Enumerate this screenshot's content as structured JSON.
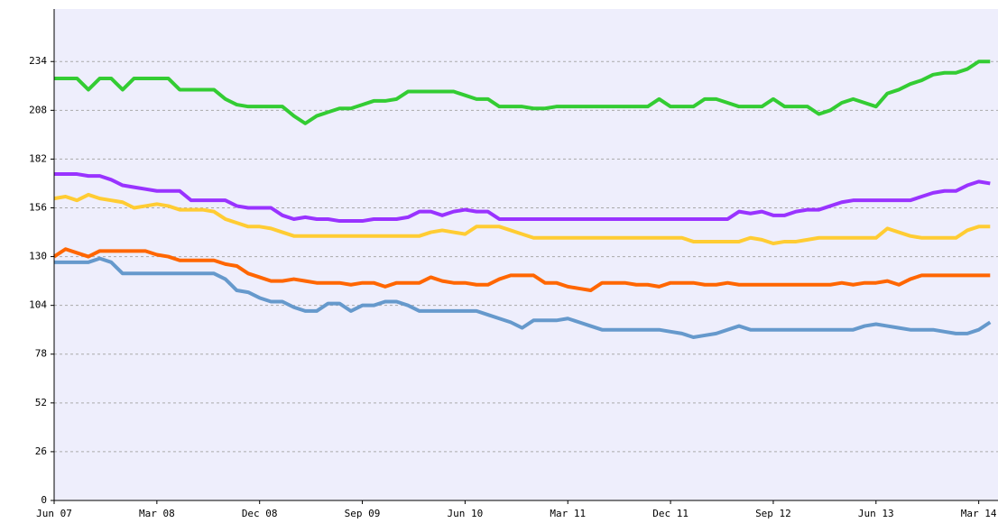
{
  "chart_data": {
    "type": "line",
    "categories": [
      "Jun 07",
      null,
      null,
      null,
      null,
      null,
      null,
      null,
      null,
      "Mar 08",
      null,
      null,
      null,
      null,
      null,
      null,
      null,
      null,
      "Dec 08",
      null,
      null,
      null,
      null,
      null,
      null,
      null,
      null,
      "Sep 09",
      null,
      null,
      null,
      null,
      null,
      null,
      null,
      null,
      "Jun 10",
      null,
      null,
      null,
      null,
      null,
      null,
      null,
      null,
      "Mar 11",
      null,
      null,
      null,
      null,
      null,
      null,
      null,
      null,
      "Dec 11",
      null,
      null,
      null,
      null,
      null,
      null,
      null,
      null,
      "Sep 12",
      null,
      null,
      null,
      null,
      null,
      null,
      null,
      null,
      "Jun 13",
      null,
      null,
      null,
      null,
      null,
      null,
      null,
      null,
      "Mar 14",
      null
    ],
    "series": [
      {
        "color": "#33cc33",
        "values": [
          225,
          225,
          225,
          219,
          225,
          225,
          219,
          225,
          225,
          225,
          225,
          219,
          219,
          219,
          219,
          214,
          211,
          210,
          210,
          210,
          210,
          205,
          201,
          205,
          207,
          209,
          209,
          211,
          213,
          213,
          214,
          218,
          218,
          218,
          218,
          218,
          216,
          214,
          214,
          210,
          210,
          210,
          209,
          209,
          210,
          210,
          210,
          210,
          210,
          210,
          210,
          210,
          210,
          214,
          210,
          210,
          210,
          214,
          214,
          212,
          210,
          210,
          210,
          214,
          210,
          210,
          210,
          206,
          208,
          212,
          214,
          212,
          210,
          217,
          219,
          222,
          224,
          227,
          228,
          228,
          230,
          234,
          234
        ]
      },
      {
        "color": "#9933ff",
        "values": [
          174,
          174,
          174,
          173,
          173,
          171,
          168,
          167,
          166,
          165,
          165,
          165,
          160,
          160,
          160,
          160,
          157,
          156,
          156,
          156,
          152,
          150,
          151,
          150,
          150,
          149,
          149,
          149,
          150,
          150,
          150,
          151,
          154,
          154,
          152,
          154,
          155,
          154,
          154,
          150,
          150,
          150,
          150,
          150,
          150,
          150,
          150,
          150,
          150,
          150,
          150,
          150,
          150,
          150,
          150,
          150,
          150,
          150,
          150,
          150,
          154,
          153,
          154,
          152,
          152,
          154,
          155,
          155,
          157,
          159,
          160,
          160,
          160,
          160,
          160,
          160,
          162,
          164,
          165,
          165,
          168,
          170,
          169
        ]
      },
      {
        "color": "#ffcc33",
        "values": [
          161,
          162,
          160,
          163,
          161,
          160,
          159,
          156,
          157,
          158,
          157,
          155,
          155,
          155,
          154,
          150,
          148,
          146,
          146,
          145,
          143,
          141,
          141,
          141,
          141,
          141,
          141,
          141,
          141,
          141,
          141,
          141,
          141,
          143,
          144,
          143,
          142,
          146,
          146,
          146,
          144,
          142,
          140,
          140,
          140,
          140,
          140,
          140,
          140,
          140,
          140,
          140,
          140,
          140,
          140,
          140,
          138,
          138,
          138,
          138,
          138,
          140,
          139,
          137,
          138,
          138,
          139,
          140,
          140,
          140,
          140,
          140,
          140,
          145,
          143,
          141,
          140,
          140,
          140,
          140,
          144,
          146,
          146
        ]
      },
      {
        "color": "#ff6600",
        "values": [
          130,
          134,
          132,
          130,
          133,
          133,
          133,
          133,
          133,
          131,
          130,
          128,
          128,
          128,
          128,
          126,
          125,
          121,
          119,
          117,
          117,
          118,
          117,
          116,
          116,
          116,
          115,
          116,
          116,
          114,
          116,
          116,
          116,
          119,
          117,
          116,
          116,
          115,
          115,
          118,
          120,
          120,
          120,
          116,
          116,
          114,
          113,
          112,
          116,
          116,
          116,
          115,
          115,
          114,
          116,
          116,
          116,
          115,
          115,
          116,
          115,
          115,
          115,
          115,
          115,
          115,
          115,
          115,
          115,
          116,
          115,
          116,
          116,
          117,
          115,
          118,
          120,
          120,
          120,
          120,
          120,
          120,
          120
        ]
      },
      {
        "color": "#6699cc",
        "values": [
          127,
          127,
          127,
          127,
          129,
          127,
          121,
          121,
          121,
          121,
          121,
          121,
          121,
          121,
          121,
          118,
          112,
          111,
          108,
          106,
          106,
          103,
          101,
          101,
          105,
          105,
          101,
          104,
          104,
          106,
          106,
          104,
          101,
          101,
          101,
          101,
          101,
          101,
          99,
          97,
          95,
          92,
          96,
          96,
          96,
          97,
          95,
          93,
          91,
          91,
          91,
          91,
          91,
          91,
          90,
          89,
          87,
          88,
          89,
          91,
          93,
          91,
          91,
          91,
          91,
          91,
          91,
          91,
          91,
          91,
          91,
          93,
          94,
          93,
          92,
          91,
          91,
          91,
          90,
          89,
          89,
          91,
          95
        ]
      }
    ],
    "ylim": [
      0,
      262
    ],
    "yticks": [
      0,
      26,
      52,
      78,
      104,
      130,
      156,
      182,
      208,
      234
    ],
    "grid": true,
    "plot_background": "#eeeefc",
    "line_width": 4
  }
}
